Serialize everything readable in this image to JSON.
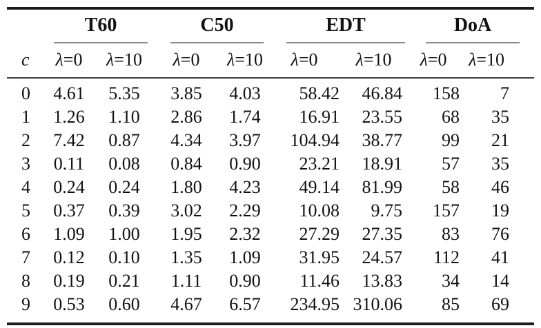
{
  "colors": {
    "background": "#ffffff",
    "text": "#111111",
    "heavy_rule": "#1b1b1b",
    "mid_rule": "#3f3f3f",
    "cmid_rule": "#8a8a8a"
  },
  "table": {
    "corner_label": "c",
    "groups": [
      {
        "label": "T60",
        "sub": [
          "λ=0",
          "λ=10"
        ]
      },
      {
        "label": "C50",
        "sub": [
          "λ=0",
          "λ=10"
        ]
      },
      {
        "label": "EDT",
        "sub": [
          "λ=0",
          "λ=10"
        ]
      },
      {
        "label": "DoA",
        "sub": [
          "λ=0",
          "λ=10"
        ]
      }
    ],
    "rows": [
      {
        "c": "0",
        "cells": [
          "4.61",
          "5.35",
          "3.85",
          "4.03",
          "58.42",
          "46.84",
          "158",
          "7"
        ]
      },
      {
        "c": "1",
        "cells": [
          "1.26",
          "1.10",
          "2.86",
          "1.74",
          "16.91",
          "23.55",
          "68",
          "35"
        ]
      },
      {
        "c": "2",
        "cells": [
          "7.42",
          "0.87",
          "4.34",
          "3.97",
          "104.94",
          "38.77",
          "99",
          "21"
        ]
      },
      {
        "c": "3",
        "cells": [
          "0.11",
          "0.08",
          "0.84",
          "0.90",
          "23.21",
          "18.91",
          "57",
          "35"
        ]
      },
      {
        "c": "4",
        "cells": [
          "0.24",
          "0.24",
          "1.80",
          "4.23",
          "49.14",
          "81.99",
          "58",
          "46"
        ]
      },
      {
        "c": "5",
        "cells": [
          "0.37",
          "0.39",
          "3.02",
          "2.29",
          "10.08",
          "9.75",
          "157",
          "19"
        ]
      },
      {
        "c": "6",
        "cells": [
          "1.09",
          "1.00",
          "1.95",
          "2.32",
          "27.29",
          "27.35",
          "83",
          "76"
        ]
      },
      {
        "c": "7",
        "cells": [
          "0.12",
          "0.10",
          "1.35",
          "1.09",
          "31.95",
          "24.57",
          "112",
          "41"
        ]
      },
      {
        "c": "8",
        "cells": [
          "0.19",
          "0.21",
          "1.11",
          "0.90",
          "11.46",
          "13.83",
          "34",
          "14"
        ]
      },
      {
        "c": "9",
        "cells": [
          "0.53",
          "0.60",
          "4.67",
          "6.57",
          "234.95",
          "310.06",
          "85",
          "69"
        ]
      }
    ]
  }
}
